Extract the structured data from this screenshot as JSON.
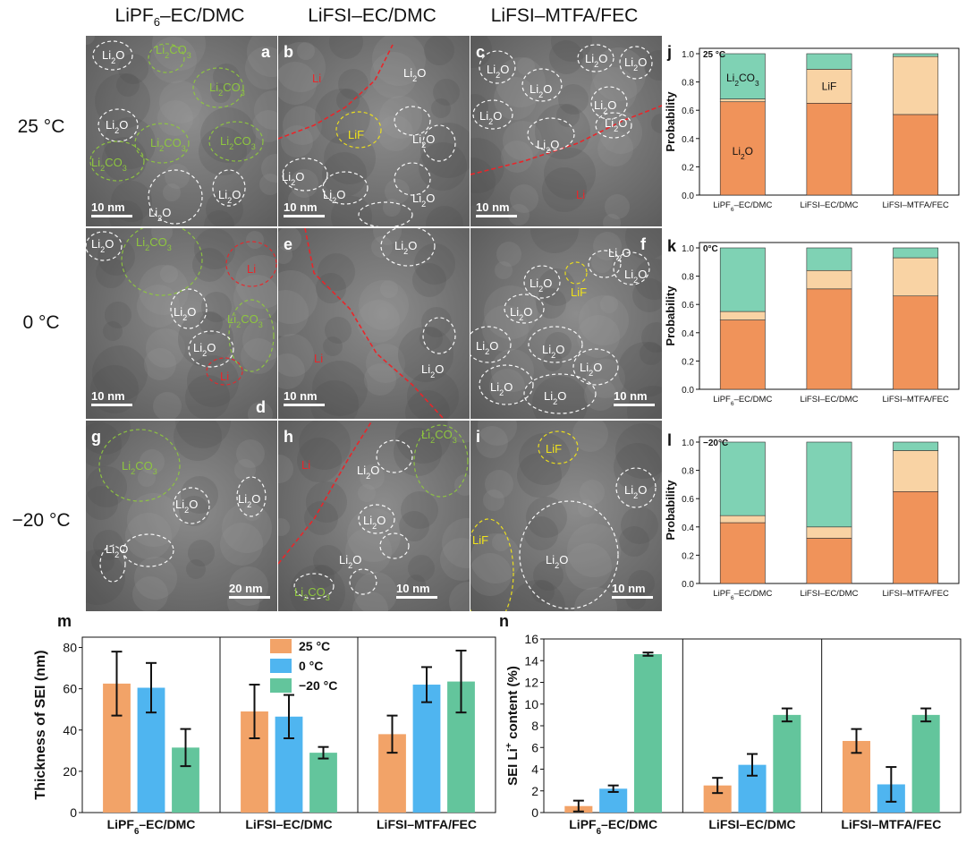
{
  "columns": [
    {
      "pre": "LiPF",
      "sub": "6",
      "post": "–EC/DMC"
    },
    {
      "pre": "LiFSI–EC/DMC",
      "sub": "",
      "post": ""
    },
    {
      "pre": "LiFSI–MTFA/FEC",
      "sub": "",
      "post": ""
    }
  ],
  "rows": [
    "25 °C",
    "0 °C",
    "−20 °C"
  ],
  "tem_panels": [
    {
      "letter": "a",
      "scale": "10 nm",
      "labels": [
        {
          "t": "Li",
          "s": "2",
          "a": "O",
          "c": "w"
        },
        {
          "t": "Li",
          "s": "2",
          "a": "CO",
          "s2": "3",
          "c": "g"
        },
        {
          "t": "Li",
          "s": "2",
          "a": "CO",
          "s2": "3",
          "c": "g"
        },
        {
          "t": "Li",
          "s": "2",
          "a": "O",
          "c": "w"
        },
        {
          "t": "Li",
          "s": "2",
          "a": "CO",
          "s2": "3",
          "c": "g"
        },
        {
          "t": "Li",
          "s": "2",
          "a": "CO",
          "s2": "3",
          "c": "g"
        },
        {
          "t": "Li",
          "s": "2",
          "a": "CO",
          "s2": "3",
          "c": "g"
        },
        {
          "t": "Li",
          "s": "2",
          "a": "O",
          "c": "w"
        },
        {
          "t": "Li",
          "s": "2",
          "a": "O",
          "c": "w"
        }
      ]
    },
    {
      "letter": "b",
      "scale": "10 nm",
      "labels": [
        {
          "t": "Li",
          "c": "r"
        },
        {
          "t": "Li",
          "s": "2",
          "a": "O",
          "c": "w"
        },
        {
          "t": "LiF",
          "c": "y"
        },
        {
          "t": "Li",
          "s": "2",
          "a": "O",
          "c": "w"
        },
        {
          "t": "Li",
          "s": "2",
          "a": "O",
          "c": "w"
        },
        {
          "t": "Li",
          "s": "2",
          "a": "O",
          "c": "w"
        },
        {
          "t": "Li",
          "s": "2",
          "a": "O",
          "c": "w"
        }
      ]
    },
    {
      "letter": "c",
      "scale": "10 nm",
      "labels": [
        {
          "t": "Li",
          "s": "2",
          "a": "O",
          "c": "w"
        },
        {
          "t": "Li",
          "s": "2",
          "a": "O",
          "c": "w"
        },
        {
          "t": "Li",
          "s": "2",
          "a": "O",
          "c": "w"
        },
        {
          "t": "Li",
          "s": "2",
          "a": "O",
          "c": "w"
        },
        {
          "t": "Li",
          "s": "2",
          "a": "O",
          "c": "w"
        },
        {
          "t": "Li",
          "s": "2",
          "a": "O",
          "c": "w"
        },
        {
          "t": "Li",
          "s": "2",
          "a": "O",
          "c": "w"
        },
        {
          "t": "Li",
          "s": "2",
          "a": "O",
          "c": "w"
        },
        {
          "t": "Li",
          "c": "r"
        }
      ]
    },
    {
      "letter": "d",
      "scale": "10 nm",
      "labels": [
        {
          "t": "Li",
          "s": "2",
          "a": "O",
          "c": "w"
        },
        {
          "t": "Li",
          "s": "2",
          "a": "CO",
          "s2": "3",
          "c": "g"
        },
        {
          "t": "Li",
          "c": "r"
        },
        {
          "t": "Li",
          "s": "2",
          "a": "O",
          "c": "w"
        },
        {
          "t": "Li",
          "s": "2",
          "a": "CO",
          "s2": "3",
          "c": "g"
        },
        {
          "t": "Li",
          "s": "2",
          "a": "O",
          "c": "w"
        },
        {
          "t": "Li",
          "c": "r"
        }
      ]
    },
    {
      "letter": "e",
      "scale": "10 nm",
      "labels": [
        {
          "t": "Li",
          "s": "2",
          "a": "O",
          "c": "w"
        },
        {
          "t": "Li",
          "c": "r"
        },
        {
          "t": "Li",
          "s": "2",
          "a": "O",
          "c": "w"
        }
      ]
    },
    {
      "letter": "f",
      "scale": "10 nm",
      "labels": [
        {
          "t": "Li",
          "s": "2",
          "a": "O",
          "c": "w"
        },
        {
          "t": "LiF",
          "c": "y"
        },
        {
          "t": "Li",
          "s": "2",
          "a": "O",
          "c": "w"
        },
        {
          "t": "Li",
          "s": "2",
          "a": "O",
          "c": "w"
        },
        {
          "t": "Li",
          "s": "2",
          "a": "O",
          "c": "w"
        },
        {
          "t": "Li",
          "s": "2",
          "a": "O",
          "c": "w"
        },
        {
          "t": "Li",
          "s": "2",
          "a": "O",
          "c": "w"
        },
        {
          "t": "Li",
          "s": "2",
          "a": "O",
          "c": "w"
        },
        {
          "t": "Li",
          "s": "2",
          "a": "O",
          "c": "w"
        },
        {
          "t": "Li",
          "s": "2",
          "a": "O",
          "c": "w"
        }
      ]
    },
    {
      "letter": "g",
      "scale": "20 nm",
      "labels": [
        {
          "t": "Li",
          "s": "2",
          "a": "CO",
          "s2": "3",
          "c": "g"
        },
        {
          "t": "Li",
          "s": "2",
          "a": "O",
          "c": "w"
        },
        {
          "t": "Li",
          "s": "2",
          "a": "O",
          "c": "w"
        },
        {
          "t": "Li",
          "s": "2",
          "a": "O",
          "c": "w"
        }
      ]
    },
    {
      "letter": "h",
      "scale": "10 nm",
      "labels": [
        {
          "t": "Li",
          "c": "r"
        },
        {
          "t": "Li",
          "s": "2",
          "a": "O",
          "c": "w"
        },
        {
          "t": "Li",
          "s": "2",
          "a": "CO",
          "s2": "3",
          "c": "g"
        },
        {
          "t": "Li",
          "s": "2",
          "a": "O",
          "c": "w"
        },
        {
          "t": "Li",
          "s": "2",
          "a": "O",
          "c": "w"
        },
        {
          "t": "Li",
          "s": "2",
          "a": "CO",
          "s2": "3",
          "c": "g"
        }
      ]
    },
    {
      "letter": "i",
      "scale": "10 nm",
      "labels": [
        {
          "t": "LiF",
          "c": "y"
        },
        {
          "t": "Li",
          "s": "2",
          "a": "O",
          "c": "w"
        },
        {
          "t": "LiF",
          "c": "y"
        },
        {
          "t": "Li",
          "s": "2",
          "a": "O",
          "c": "w"
        }
      ]
    }
  ],
  "colors": {
    "li2o": "#f0935a",
    "lif": "#f9d3a4",
    "li2co3": "#7fd2b4",
    "t25": "#f2a368",
    "t0": "#4fb5f0",
    "tm20": "#63c59c",
    "tem_white": "#ffffff",
    "tem_green": "#8ec63f",
    "tem_red": "#e8262a",
    "tem_yellow": "#f0e31a"
  },
  "chart_data": [
    {
      "type": "bar",
      "stacked": true,
      "letter": "j",
      "temp": "25 °C",
      "categories": [
        {
          "pre": "LiPF",
          "sub": "6",
          "post": "–EC/DMC"
        },
        {
          "pre": "LiFSI–EC/DMC"
        },
        {
          "pre": "LiFSI–MTFA/FEC"
        }
      ],
      "series": [
        {
          "key": "li2o",
          "values": [
            0.66,
            0.65,
            0.57
          ]
        },
        {
          "key": "lif",
          "values": [
            0.02,
            0.24,
            0.41
          ]
        },
        {
          "key": "li2co3",
          "values": [
            0.32,
            0.11,
            0.02
          ]
        }
      ],
      "ylabel": "Probability",
      "ylim": [
        0,
        1.0
      ],
      "yticks": [
        "0.0",
        "0.2",
        "0.4",
        "0.6",
        "0.8",
        "1.0"
      ],
      "annotations": [
        {
          "pre": "Li",
          "sub": "2",
          "post": "CO",
          "sub2": "3",
          "ci": 0,
          "v": 0.83
        },
        {
          "pre": "LiF",
          "ci": 1,
          "v": 0.77
        },
        {
          "pre": "Li",
          "sub": "2",
          "post": "O",
          "ci": 0,
          "v": 0.31
        }
      ]
    },
    {
      "type": "bar",
      "stacked": true,
      "letter": "k",
      "temp": "0°C",
      "categories": [
        {
          "pre": "LiPF",
          "sub": "6",
          "post": "–EC/DMC"
        },
        {
          "pre": "LiFSI–EC/DMC"
        },
        {
          "pre": "LiFSI–MTFA/FEC"
        }
      ],
      "series": [
        {
          "key": "li2o",
          "values": [
            0.49,
            0.71,
            0.66
          ]
        },
        {
          "key": "lif",
          "values": [
            0.06,
            0.13,
            0.27
          ]
        },
        {
          "key": "li2co3",
          "values": [
            0.45,
            0.16,
            0.07
          ]
        }
      ],
      "ylabel": "Probability",
      "ylim": [
        0,
        1.0
      ],
      "yticks": [
        "0.0",
        "0.2",
        "0.4",
        "0.6",
        "0.8",
        "1.0"
      ],
      "annotations": []
    },
    {
      "type": "bar",
      "stacked": true,
      "letter": "l",
      "temp": "−20°C",
      "categories": [
        {
          "pre": "LiPF",
          "sub": "6",
          "post": "–EC/DMC"
        },
        {
          "pre": "LiFSI–EC/DMC"
        },
        {
          "pre": "LiFSI–MTFA/FEC"
        }
      ],
      "series": [
        {
          "key": "li2o",
          "values": [
            0.43,
            0.32,
            0.65
          ]
        },
        {
          "key": "lif",
          "values": [
            0.05,
            0.08,
            0.29
          ]
        },
        {
          "key": "li2co3",
          "values": [
            0.52,
            0.6,
            0.06
          ]
        }
      ],
      "ylabel": "Probability",
      "ylim": [
        0,
        1.0
      ],
      "yticks": [
        "0.0",
        "0.2",
        "0.4",
        "0.6",
        "0.8",
        "1.0"
      ],
      "annotations": []
    },
    {
      "type": "bar",
      "letter": "m",
      "ylabel": "Thickness of SEI (nm)",
      "ylim": [
        0,
        85
      ],
      "yticks": [
        "0",
        "20",
        "40",
        "60",
        "80"
      ],
      "ytick_values": [
        0,
        20,
        40,
        60,
        80
      ],
      "legend": [
        {
          "name": "25 °C",
          "key": "t25"
        },
        {
          "name": "0 °C",
          "key": "t0"
        },
        {
          "name": "−20 °C",
          "key": "tm20"
        }
      ],
      "groups": [
        {
          "label": {
            "pre": "LiPF",
            "sub": "6",
            "post": "–EC/DMC"
          },
          "values": [
            62.5,
            60.5,
            31.5
          ],
          "errors": [
            15.5,
            12,
            9
          ]
        },
        {
          "label": {
            "pre": "LiFSI–EC/DMC"
          },
          "values": [
            49,
            46.5,
            29
          ],
          "errors": [
            13,
            10.5,
            2.8
          ]
        },
        {
          "label": {
            "pre": "LiFSI–MTFA/FEC"
          },
          "values": [
            38,
            62,
            63.5
          ],
          "errors": [
            9,
            8.5,
            15
          ]
        }
      ]
    },
    {
      "type": "bar",
      "letter": "n",
      "ylabel_pre": "SEI Li",
      "ylabel_sup": "+",
      "ylabel_post": " content (%)",
      "ylim": [
        0,
        16
      ],
      "yticks": [
        "0",
        "2",
        "4",
        "6",
        "8",
        "10",
        "12",
        "14",
        "16"
      ],
      "ytick_values": [
        0,
        2,
        4,
        6,
        8,
        10,
        12,
        14,
        16
      ],
      "groups": [
        {
          "label": {
            "pre": "LiPF",
            "sub": "6",
            "post": "–EC/DMC"
          },
          "values": [
            0.6,
            2.2,
            14.6
          ],
          "errors": [
            0.5,
            0.3,
            0.15
          ]
        },
        {
          "label": {
            "pre": "LiFSI–EC/DMC"
          },
          "values": [
            2.5,
            4.4,
            9.0
          ],
          "errors": [
            0.7,
            1.0,
            0.6
          ]
        },
        {
          "label": {
            "pre": "LiFSI–MTFA/FEC"
          },
          "values": [
            6.6,
            2.6,
            9.0
          ],
          "errors": [
            1.1,
            1.6,
            0.6
          ]
        }
      ]
    }
  ]
}
